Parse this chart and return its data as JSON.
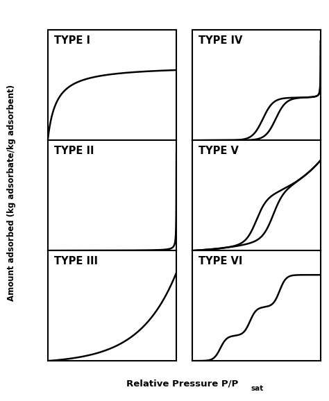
{
  "ylabel": "Amount adsorbed (kg adsorbate/kg adsorbent)",
  "xlabel": "Relative Pressure P/P",
  "xlabel_sub": "sat",
  "types": [
    "TYPE I",
    "TYPE II",
    "TYPE III",
    "TYPE IV",
    "TYPE V",
    "TYPE VI"
  ],
  "line_color": "#000000",
  "line_width": 1.8,
  "bg_color": "#ffffff",
  "label_fontsize": 10.5,
  "axis_label_fontsize": 10
}
